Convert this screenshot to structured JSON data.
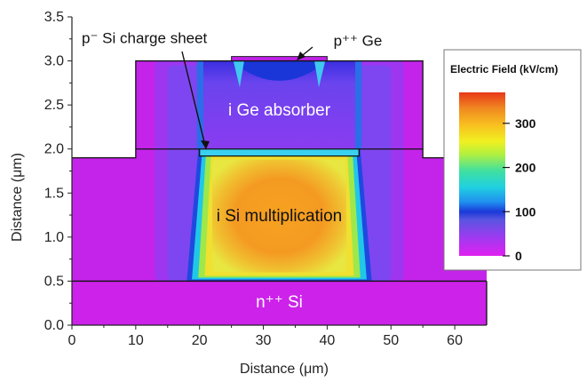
{
  "chart_data": {
    "type": "heatmap",
    "xlabel": "Distance (μm)",
    "ylabel": "Distance (μm)",
    "xlim": [
      0,
      65
    ],
    "ylim": [
      0.0,
      3.5
    ],
    "xticks": [
      "0",
      "10",
      "20",
      "30",
      "40",
      "50",
      "60"
    ],
    "yticks": [
      "0.0",
      "0.5",
      "1.0",
      "1.5",
      "2.0",
      "2.5",
      "3.0",
      "3.5"
    ],
    "colorbar": {
      "title": "Electric Field (kV/cm)",
      "ticks": [
        "0",
        "100",
        "200",
        "300"
      ],
      "range": [
        0,
        370
      ]
    },
    "regions": [
      {
        "label": "n⁺⁺ Si",
        "x": [
          0,
          65
        ],
        "y": [
          0.0,
          0.5
        ],
        "field_kv_cm": 10
      },
      {
        "label": "i Si multiplication",
        "x": [
          18,
          47
        ],
        "y": [
          0.5,
          2.0
        ],
        "field_kv_cm": 320
      },
      {
        "label": "i Ge absorber",
        "x": [
          20,
          45
        ],
        "y": [
          2.0,
          3.0
        ],
        "field_kv_cm": 50
      },
      {
        "label": "p⁻ Si charge sheet",
        "x": [
          20,
          45
        ],
        "y": [
          1.95,
          2.0
        ],
        "field_kv_cm": 150
      },
      {
        "label": "p⁺⁺ Ge",
        "x": [
          25,
          40
        ],
        "y": [
          3.0,
          3.05
        ],
        "field_kv_cm": 0
      }
    ],
    "annotations": [
      "p⁻ Si charge sheet",
      "p⁺⁺ Ge"
    ]
  }
}
